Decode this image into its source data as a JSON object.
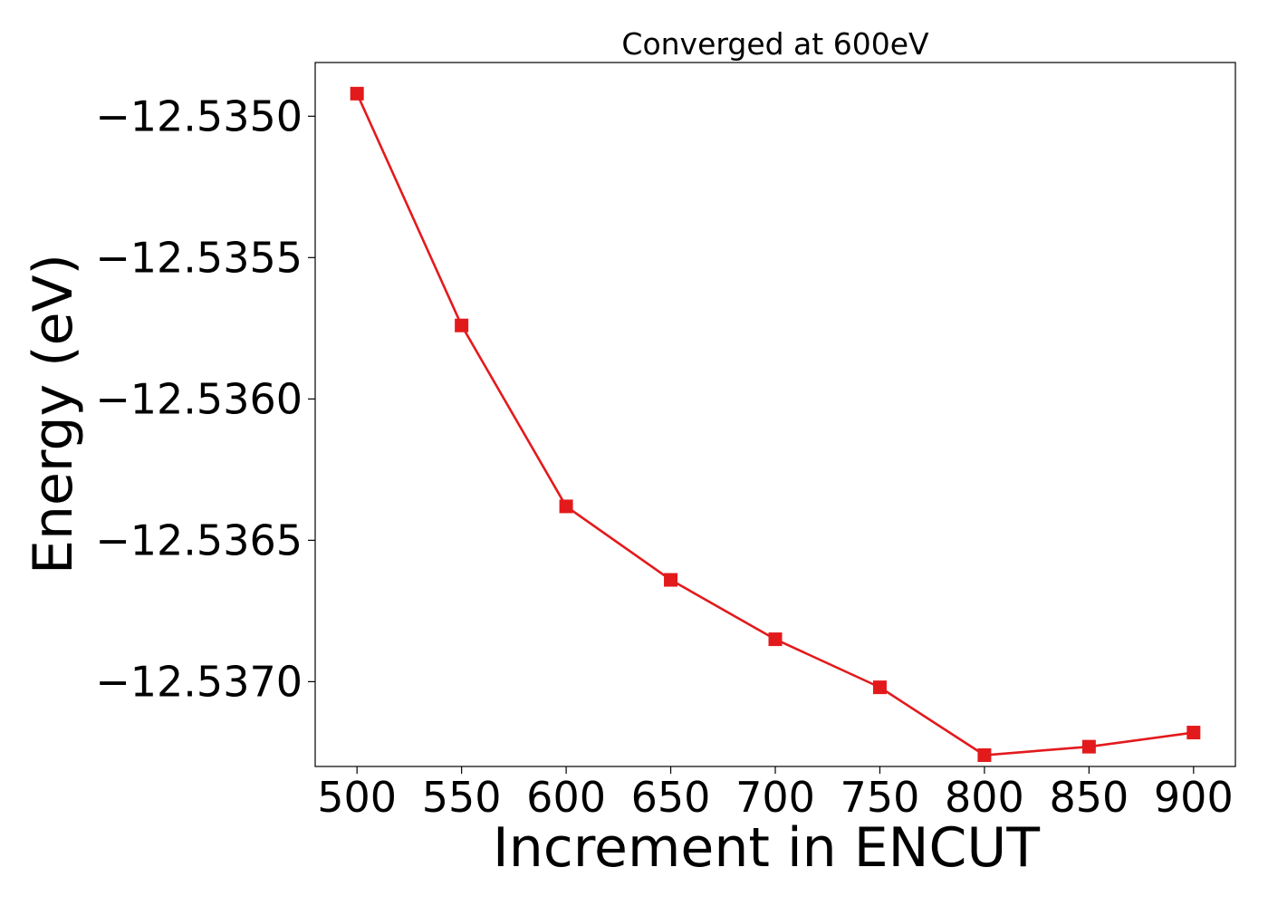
{
  "chart_data": {
    "type": "line",
    "title": "Converged at 600eV",
    "xlabel": "Increment in ENCUT",
    "ylabel": "Energy (eV)",
    "x": [
      500,
      550,
      600,
      650,
      700,
      750,
      800,
      850,
      900
    ],
    "series": [
      {
        "values": [
          -12.53492,
          -12.53574,
          -12.53638,
          -12.53664,
          -12.53685,
          -12.53702,
          -12.53726,
          -12.53723,
          -12.53718
        ],
        "color": "#e31a1c",
        "marker": "square"
      }
    ],
    "xticks": [
      500,
      550,
      600,
      650,
      700,
      750,
      800,
      850,
      900
    ],
    "xtick_labels": [
      "500",
      "550",
      "600",
      "650",
      "700",
      "750",
      "800",
      "850",
      "900"
    ],
    "yticks": [
      -12.535,
      -12.5355,
      -12.536,
      -12.5365,
      -12.537
    ],
    "ytick_labels": [
      "−12.5350",
      "−12.5355",
      "−12.5360",
      "−12.5365",
      "−12.5370"
    ],
    "xlim": [
      480,
      920
    ],
    "ylim": [
      -12.5373,
      -12.53481
    ],
    "grid": false,
    "legend": false
  }
}
